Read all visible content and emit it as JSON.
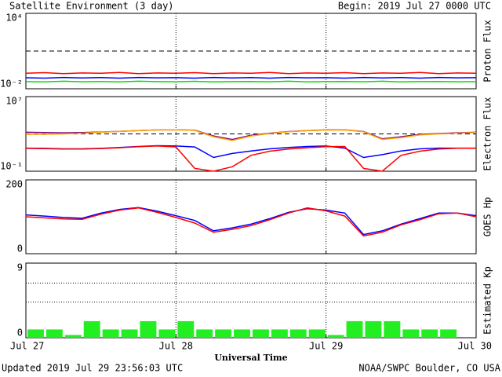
{
  "header": {
    "title": "Satellite Environment (3 day)",
    "begin": "Begin:  2019 Jul 27 0000 UTC"
  },
  "footer": {
    "updated": "Updated 2019 Jul 29 23:56:03 UTC",
    "source": "NOAA/SWPC Boulder, CO USA"
  },
  "x_axis": {
    "label": "Universal Time",
    "xlim": [
      0,
      72
    ],
    "xticks": [
      {
        "value": 0,
        "label": "Jul 27"
      },
      {
        "value": 24,
        "label": "Jul 28"
      },
      {
        "value": 48,
        "label": "Jul 29"
      },
      {
        "value": 72,
        "label": "Jul 30"
      }
    ],
    "x": [
      0,
      3,
      6,
      9,
      12,
      15,
      18,
      21,
      24,
      27,
      30,
      33,
      36,
      39,
      42,
      45,
      48,
      51,
      54,
      57,
      60,
      63,
      66,
      69,
      72
    ]
  },
  "chart_data": [
    {
      "type": "line",
      "y_label": "Proton Flux",
      "log_scale": true,
      "ylim": [
        0.01,
        10000
      ],
      "yticks": [
        {
          "value": 0.01,
          "label": "10⁻²"
        },
        {
          "value": 10000,
          "label": "10⁴"
        }
      ],
      "threshold": 10,
      "series": [
        {
          "color": "#ff0000",
          "values": [
            0.17,
            0.19,
            0.16,
            0.18,
            0.17,
            0.2,
            0.16,
            0.18,
            0.17,
            0.19,
            0.16,
            0.18,
            0.17,
            0.2,
            0.16,
            0.18,
            0.17,
            0.19,
            0.16,
            0.18,
            0.17,
            0.2,
            0.16,
            0.18,
            0.17
          ]
        },
        {
          "color": "#0000ff",
          "values": [
            0.075,
            0.07,
            0.08,
            0.072,
            0.078,
            0.07,
            0.08,
            0.074,
            0.076,
            0.07,
            0.08,
            0.072,
            0.078,
            0.07,
            0.08,
            0.074,
            0.076,
            0.07,
            0.08,
            0.072,
            0.078,
            0.07,
            0.08,
            0.074,
            0.076
          ]
        },
        {
          "color": "#00dd00",
          "values": [
            0.037,
            0.035,
            0.04,
            0.036,
            0.038,
            0.035,
            0.04,
            0.037,
            0.036,
            0.039,
            0.035,
            0.037,
            0.038,
            0.036,
            0.04,
            0.035,
            0.037,
            0.038,
            0.036,
            0.04,
            0.035,
            0.037,
            0.038,
            0.036,
            0.037
          ]
        }
      ]
    },
    {
      "type": "line",
      "y_label": "Electron Flux",
      "log_scale": true,
      "ylim": [
        0.1,
        10000000
      ],
      "yticks": [
        {
          "value": 0.1,
          "label": "10⁻¹"
        },
        {
          "value": 10000000,
          "label": "10⁷"
        }
      ],
      "threshold": 1000,
      "series": [
        {
          "color": "#800080",
          "values": [
            1500,
            1400,
            1300,
            1400,
            1600,
            1900,
            2300,
            2700,
            2800,
            2500,
            600,
            250,
            700,
            1200,
            1800,
            2300,
            2700,
            2800,
            1800,
            300,
            500,
            900,
            1100,
            1300,
            1500
          ]
        },
        {
          "color": "#ffa500",
          "values": [
            900,
            900,
            1000,
            1200,
            1500,
            1900,
            2300,
            2700,
            2800,
            2400,
            500,
            200,
            600,
            1100,
            1700,
            2200,
            2600,
            2700,
            1700,
            250,
            400,
            800,
            1000,
            1200,
            1400
          ]
        },
        {
          "color": "#0000ff",
          "values": [
            30,
            28,
            25,
            25,
            28,
            35,
            45,
            55,
            50,
            40,
            3,
            8,
            15,
            25,
            35,
            45,
            50,
            30,
            3,
            6,
            15,
            25,
            30,
            30,
            30
          ]
        },
        {
          "color": "#ff0000",
          "values": [
            28,
            26,
            24,
            24,
            27,
            33,
            42,
            50,
            40,
            0.2,
            0.1,
            0.3,
            5,
            14,
            24,
            33,
            43,
            45,
            0.2,
            0.1,
            5,
            14,
            24,
            29,
            29
          ]
        }
      ]
    },
    {
      "type": "line",
      "y_label": "GOES Hp",
      "log_scale": false,
      "ylim": [
        0,
        200
      ],
      "yticks": [
        0,
        200
      ],
      "series": [
        {
          "color": "#0000ff",
          "values": [
            105,
            102,
            98,
            96,
            110,
            120,
            125,
            115,
            103,
            90,
            62,
            70,
            80,
            95,
            112,
            122,
            118,
            110,
            52,
            62,
            80,
            95,
            110,
            110,
            103
          ]
        },
        {
          "color": "#ff0000",
          "values": [
            100,
            97,
            94,
            93,
            107,
            118,
            124,
            112,
            98,
            83,
            58,
            66,
            76,
            92,
            110,
            124,
            116,
            102,
            48,
            58,
            78,
            92,
            108,
            110,
            100
          ]
        }
      ]
    },
    {
      "type": "bar",
      "y_label": "Estimated Kp",
      "log_scale": false,
      "ylim": [
        0,
        9
      ],
      "yticks": [
        0,
        9
      ],
      "grid_levels": [
        4.3,
        6.6
      ],
      "color": "#22ee22",
      "x": [
        0,
        3,
        6,
        9,
        12,
        15,
        18,
        21,
        24,
        27,
        30,
        33,
        36,
        39,
        42,
        45,
        48,
        51,
        54,
        57,
        60,
        63,
        66
      ],
      "values": [
        1,
        1,
        0.33,
        2,
        1,
        1,
        2,
        1,
        2,
        1,
        1,
        1,
        1,
        1,
        1,
        1,
        0.33,
        2,
        2,
        2,
        1,
        1,
        1
      ]
    }
  ]
}
